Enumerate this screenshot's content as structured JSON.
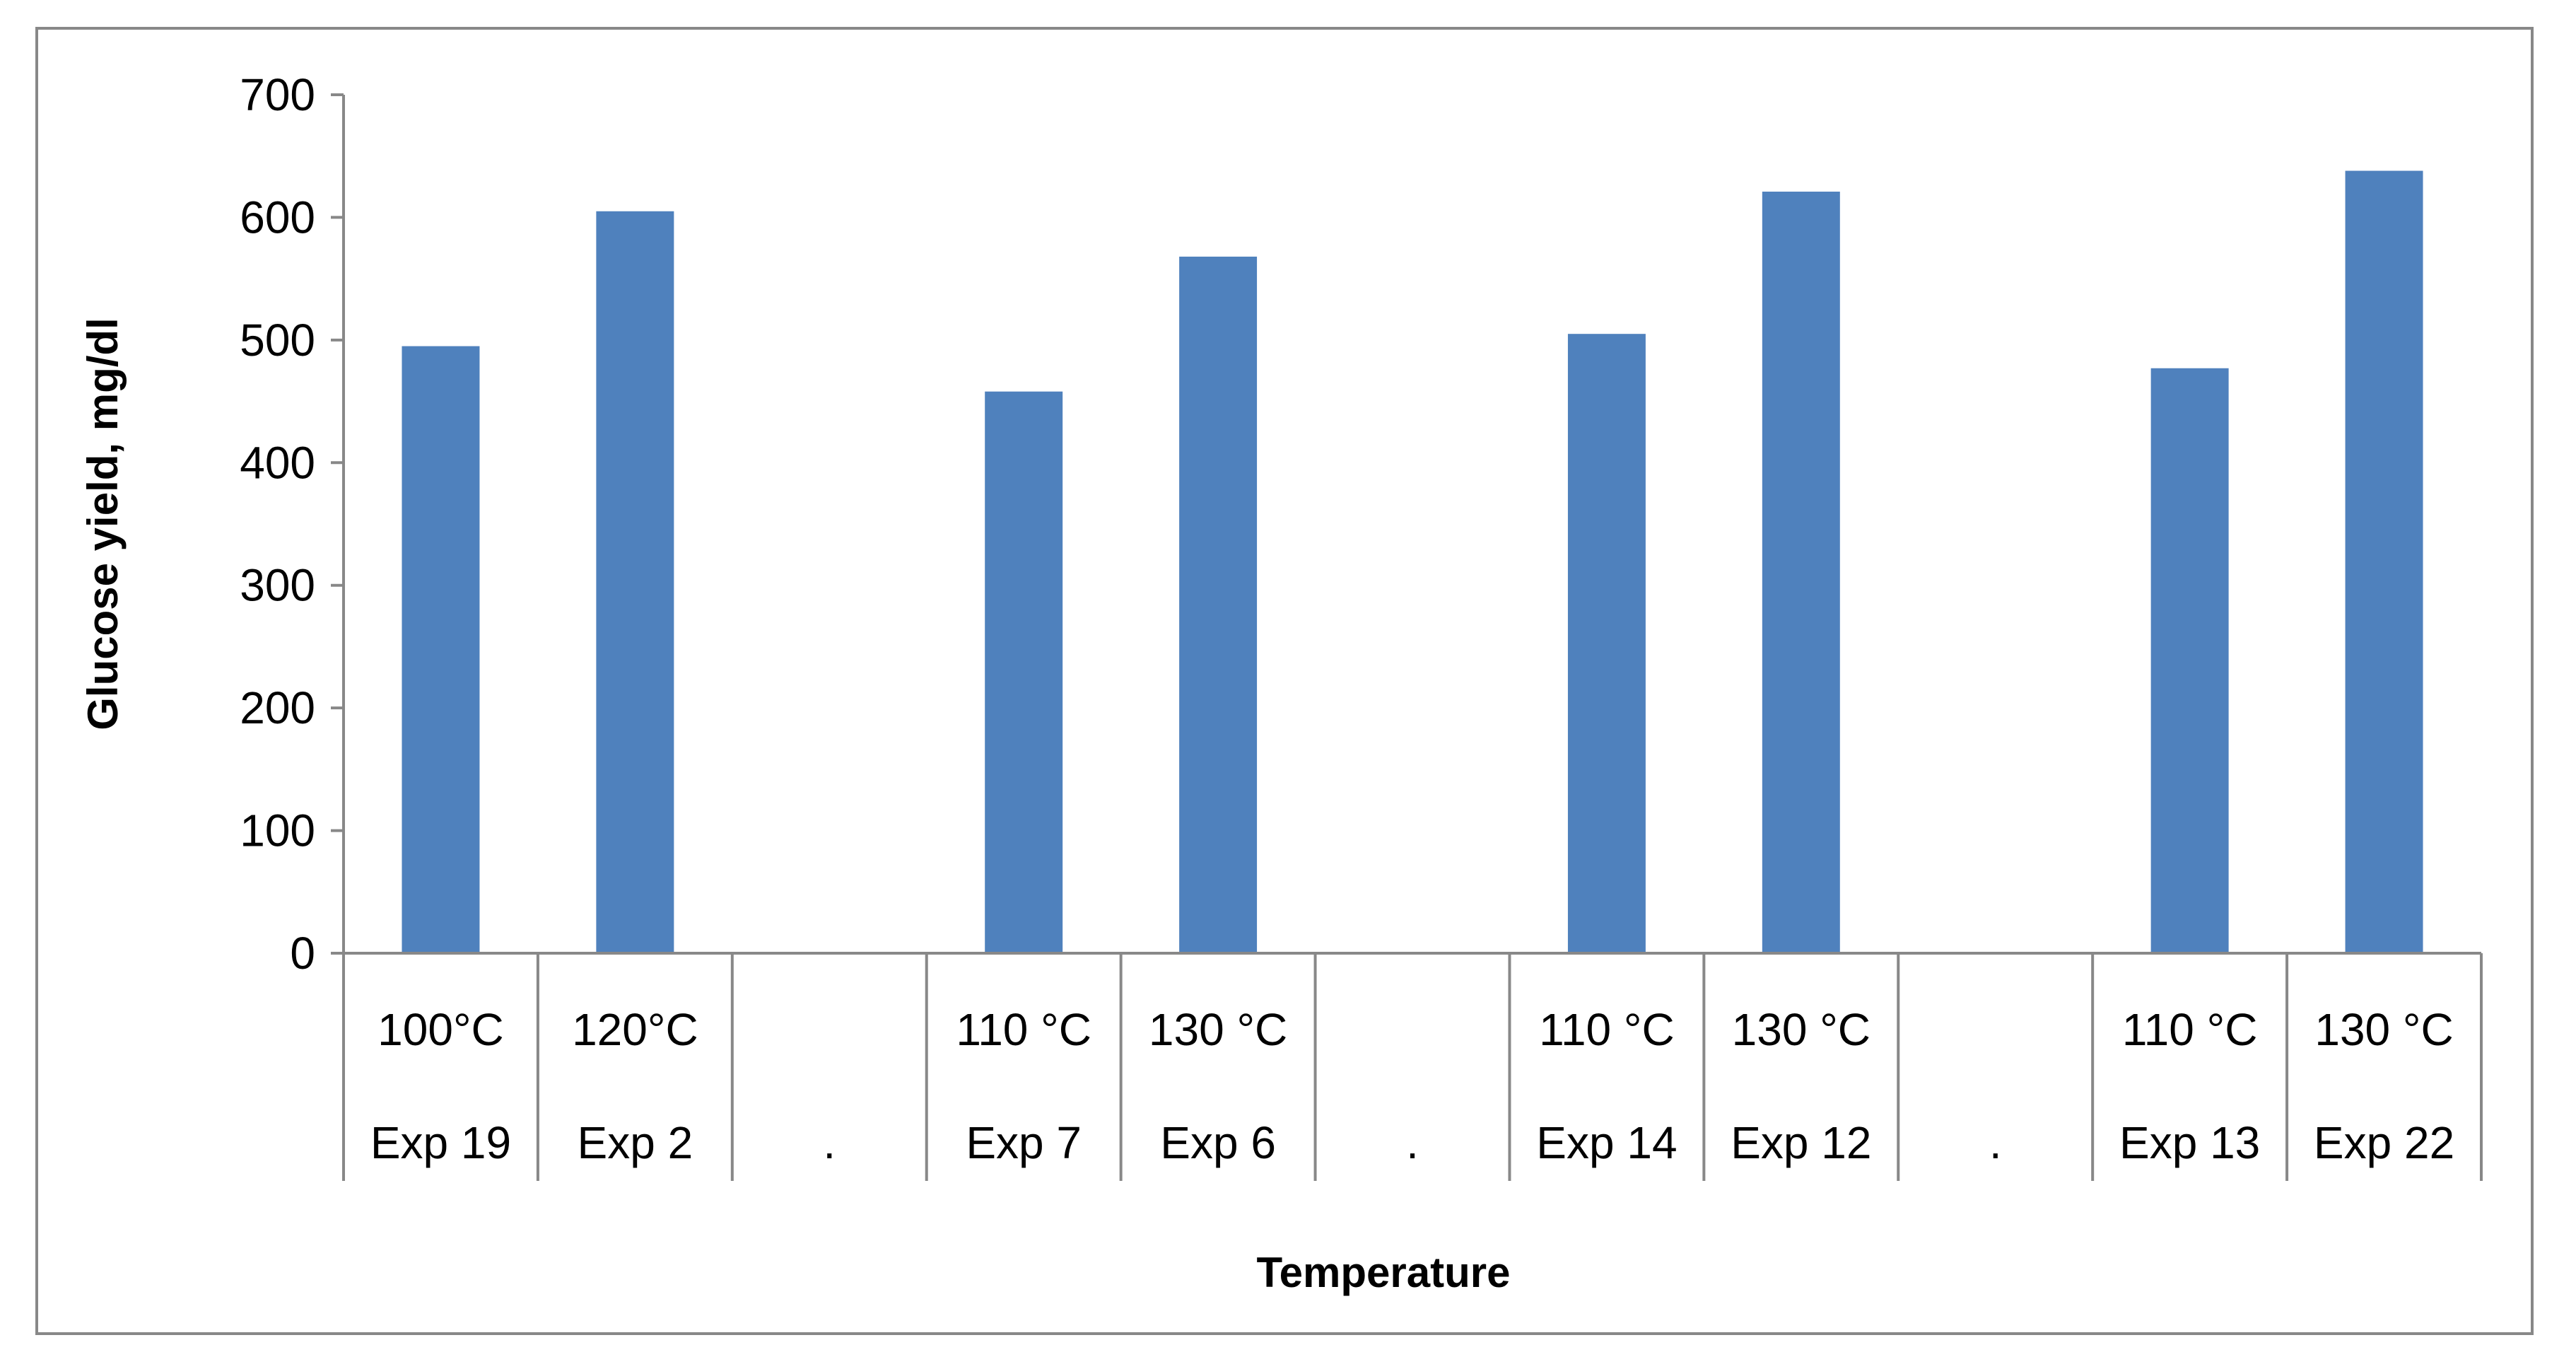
{
  "chart_data": {
    "type": "bar",
    "xlabel": "Temperature",
    "ylabel": "Glucose yield, mg/dl",
    "ylim": [
      0,
      700
    ],
    "yticks": [
      0,
      100,
      200,
      300,
      400,
      500,
      600,
      700
    ],
    "grid": false,
    "legend": "none",
    "bar_color": "#4F81BD",
    "categories": [
      {
        "temp": "100°C",
        "exp": "Exp 19"
      },
      {
        "temp": "120°C",
        "exp": "Exp 2"
      },
      {
        "temp": "",
        "exp": "."
      },
      {
        "temp": "110 °C",
        "exp": "Exp 7"
      },
      {
        "temp": "130 °C",
        "exp": "Exp 6"
      },
      {
        "temp": "",
        "exp": "."
      },
      {
        "temp": "110 °C",
        "exp": "Exp 14"
      },
      {
        "temp": "130 °C",
        "exp": "Exp 12"
      },
      {
        "temp": "",
        "exp": "."
      },
      {
        "temp": "110 °C",
        "exp": "Exp 13"
      },
      {
        "temp": "130 °C",
        "exp": "Exp 22"
      }
    ],
    "values": [
      495,
      605,
      null,
      458,
      568,
      null,
      505,
      621,
      null,
      477,
      638
    ]
  }
}
